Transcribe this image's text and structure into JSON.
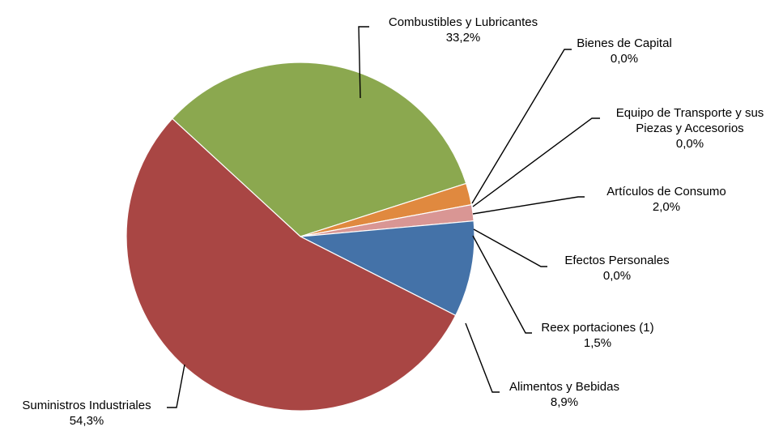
{
  "chart_data": {
    "type": "pie",
    "title": "",
    "slices": [
      {
        "name": "Combustibles y Lubricantes",
        "value": 33.2,
        "value_label": "33,2%",
        "color": "#8BA84F"
      },
      {
        "name": "Bienes de Capital",
        "value": 0.0,
        "value_label": "0,0%",
        "color": "#4F81BD"
      },
      {
        "name": "Equipo de Transporte y sus Piezas y Accesorios",
        "lines": [
          "Equipo de Transporte y sus",
          "Piezas y Accesorios"
        ],
        "value": 0.0,
        "value_label": "0,0%",
        "color": "#7F7F7F"
      },
      {
        "name": "Artículos de Consumo",
        "value": 2.0,
        "value_label": "2,0%",
        "color": "#E0893F"
      },
      {
        "name": "Efectos Personales",
        "value": 0.0,
        "value_label": "0,0%",
        "color": "#9BBB59"
      },
      {
        "name": "Reexportaciones (1)",
        "lines": [
          "Reex portaciones (1)"
        ],
        "value": 1.5,
        "value_label": "1,5%",
        "color": "#D99694"
      },
      {
        "name": "Alimentos y Bebidas",
        "value": 8.9,
        "value_label": "8,9%",
        "color": "#4472A8"
      },
      {
        "name": "Suministros Industriales",
        "value": 54.3,
        "value_label": "54,3%",
        "color": "#A94644"
      }
    ]
  }
}
